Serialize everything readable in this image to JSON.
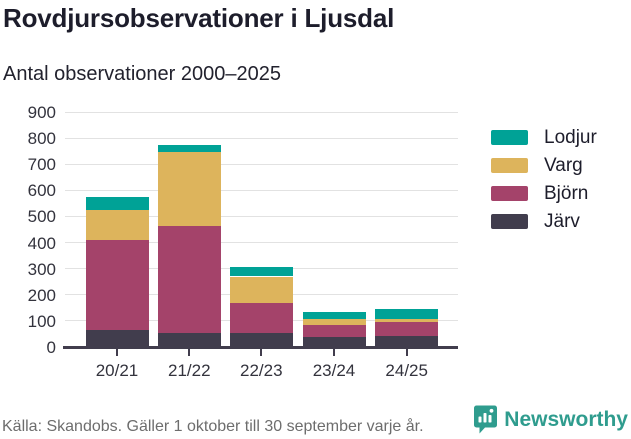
{
  "title": "Rovdjursobservationer i Ljusdal",
  "subtitle": "Antal observationer 2000–2025",
  "footer": {
    "source": "Källa: Skandobs. Gäller 1 oktober till 30 september varje år.",
    "brand": "Newsworthy",
    "brand_color": "#2f9c8e"
  },
  "chart_data": {
    "type": "bar",
    "stacked": true,
    "title": "Rovdjursobservationer i Ljusdal",
    "subtitle": "Antal observationer 2000–2025",
    "categories": [
      "20/21",
      "21/22",
      "22/23",
      "23/24",
      "24/25"
    ],
    "series": [
      {
        "name": "Järv",
        "color": "#413d4d",
        "values": [
          65,
          55,
          52,
          38,
          42
        ]
      },
      {
        "name": "Björn",
        "color": "#a4436a",
        "values": [
          345,
          410,
          115,
          45,
          52
        ]
      },
      {
        "name": "Varg",
        "color": "#ddb45c",
        "values": [
          115,
          280,
          103,
          25,
          15
        ]
      },
      {
        "name": "Lodjur",
        "color": "#00a296",
        "values": [
          48,
          30,
          37,
          27,
          37
        ]
      }
    ],
    "totals": [
      573,
      775,
      307,
      135,
      146
    ],
    "legend_order": [
      "Lodjur",
      "Varg",
      "Björn",
      "Järv"
    ],
    "legend_position": "right",
    "xlabel": "",
    "ylabel": "",
    "ylim": [
      0,
      900
    ],
    "yticks": [
      0,
      100,
      200,
      300,
      400,
      500,
      600,
      700,
      800,
      900
    ],
    "grid": true,
    "grid_color": "#e2e2e2",
    "axis_color": "#413d4d"
  }
}
